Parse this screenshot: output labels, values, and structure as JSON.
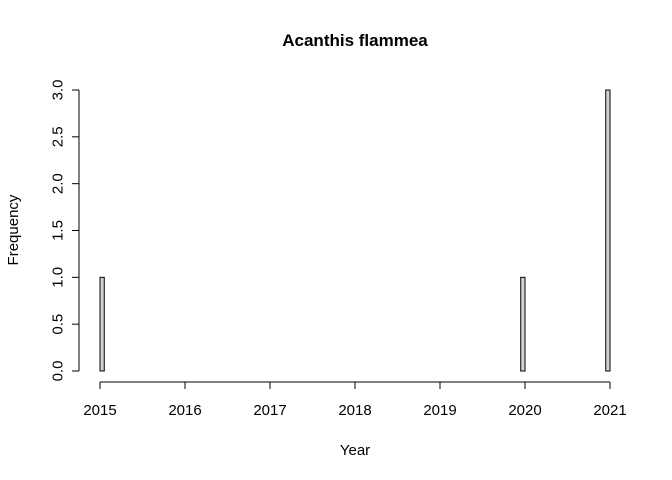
{
  "chart_data": {
    "type": "bar",
    "subtype": "histogram",
    "title": "Acanthis flammea",
    "xlabel": "Year",
    "ylabel": "Frequency",
    "xlim": [
      2015,
      2021
    ],
    "ylim": [
      0,
      3
    ],
    "x_ticks": [
      2015,
      2016,
      2017,
      2018,
      2019,
      2020,
      2021
    ],
    "y_ticks": [
      0.0,
      0.5,
      1.0,
      1.5,
      2.0,
      2.5,
      3.0
    ],
    "x_tick_labels": [
      "2015",
      "2016",
      "2017",
      "2018",
      "2019",
      "2020",
      "2021"
    ],
    "y_tick_labels": [
      "0.0",
      "0.5",
      "1.0",
      "1.5",
      "2.0",
      "2.5",
      "3.0"
    ],
    "bin_width": 0.05,
    "bins": [
      {
        "start": 2015.0,
        "end": 2015.05,
        "count": 1
      },
      {
        "start": 2019.95,
        "end": 2020.0,
        "count": 1
      },
      {
        "start": 2020.95,
        "end": 2021.0,
        "count": 3
      }
    ],
    "bar_fill": "#d3d3d3",
    "bar_stroke": "#000000",
    "grid": false,
    "legend": "none"
  }
}
